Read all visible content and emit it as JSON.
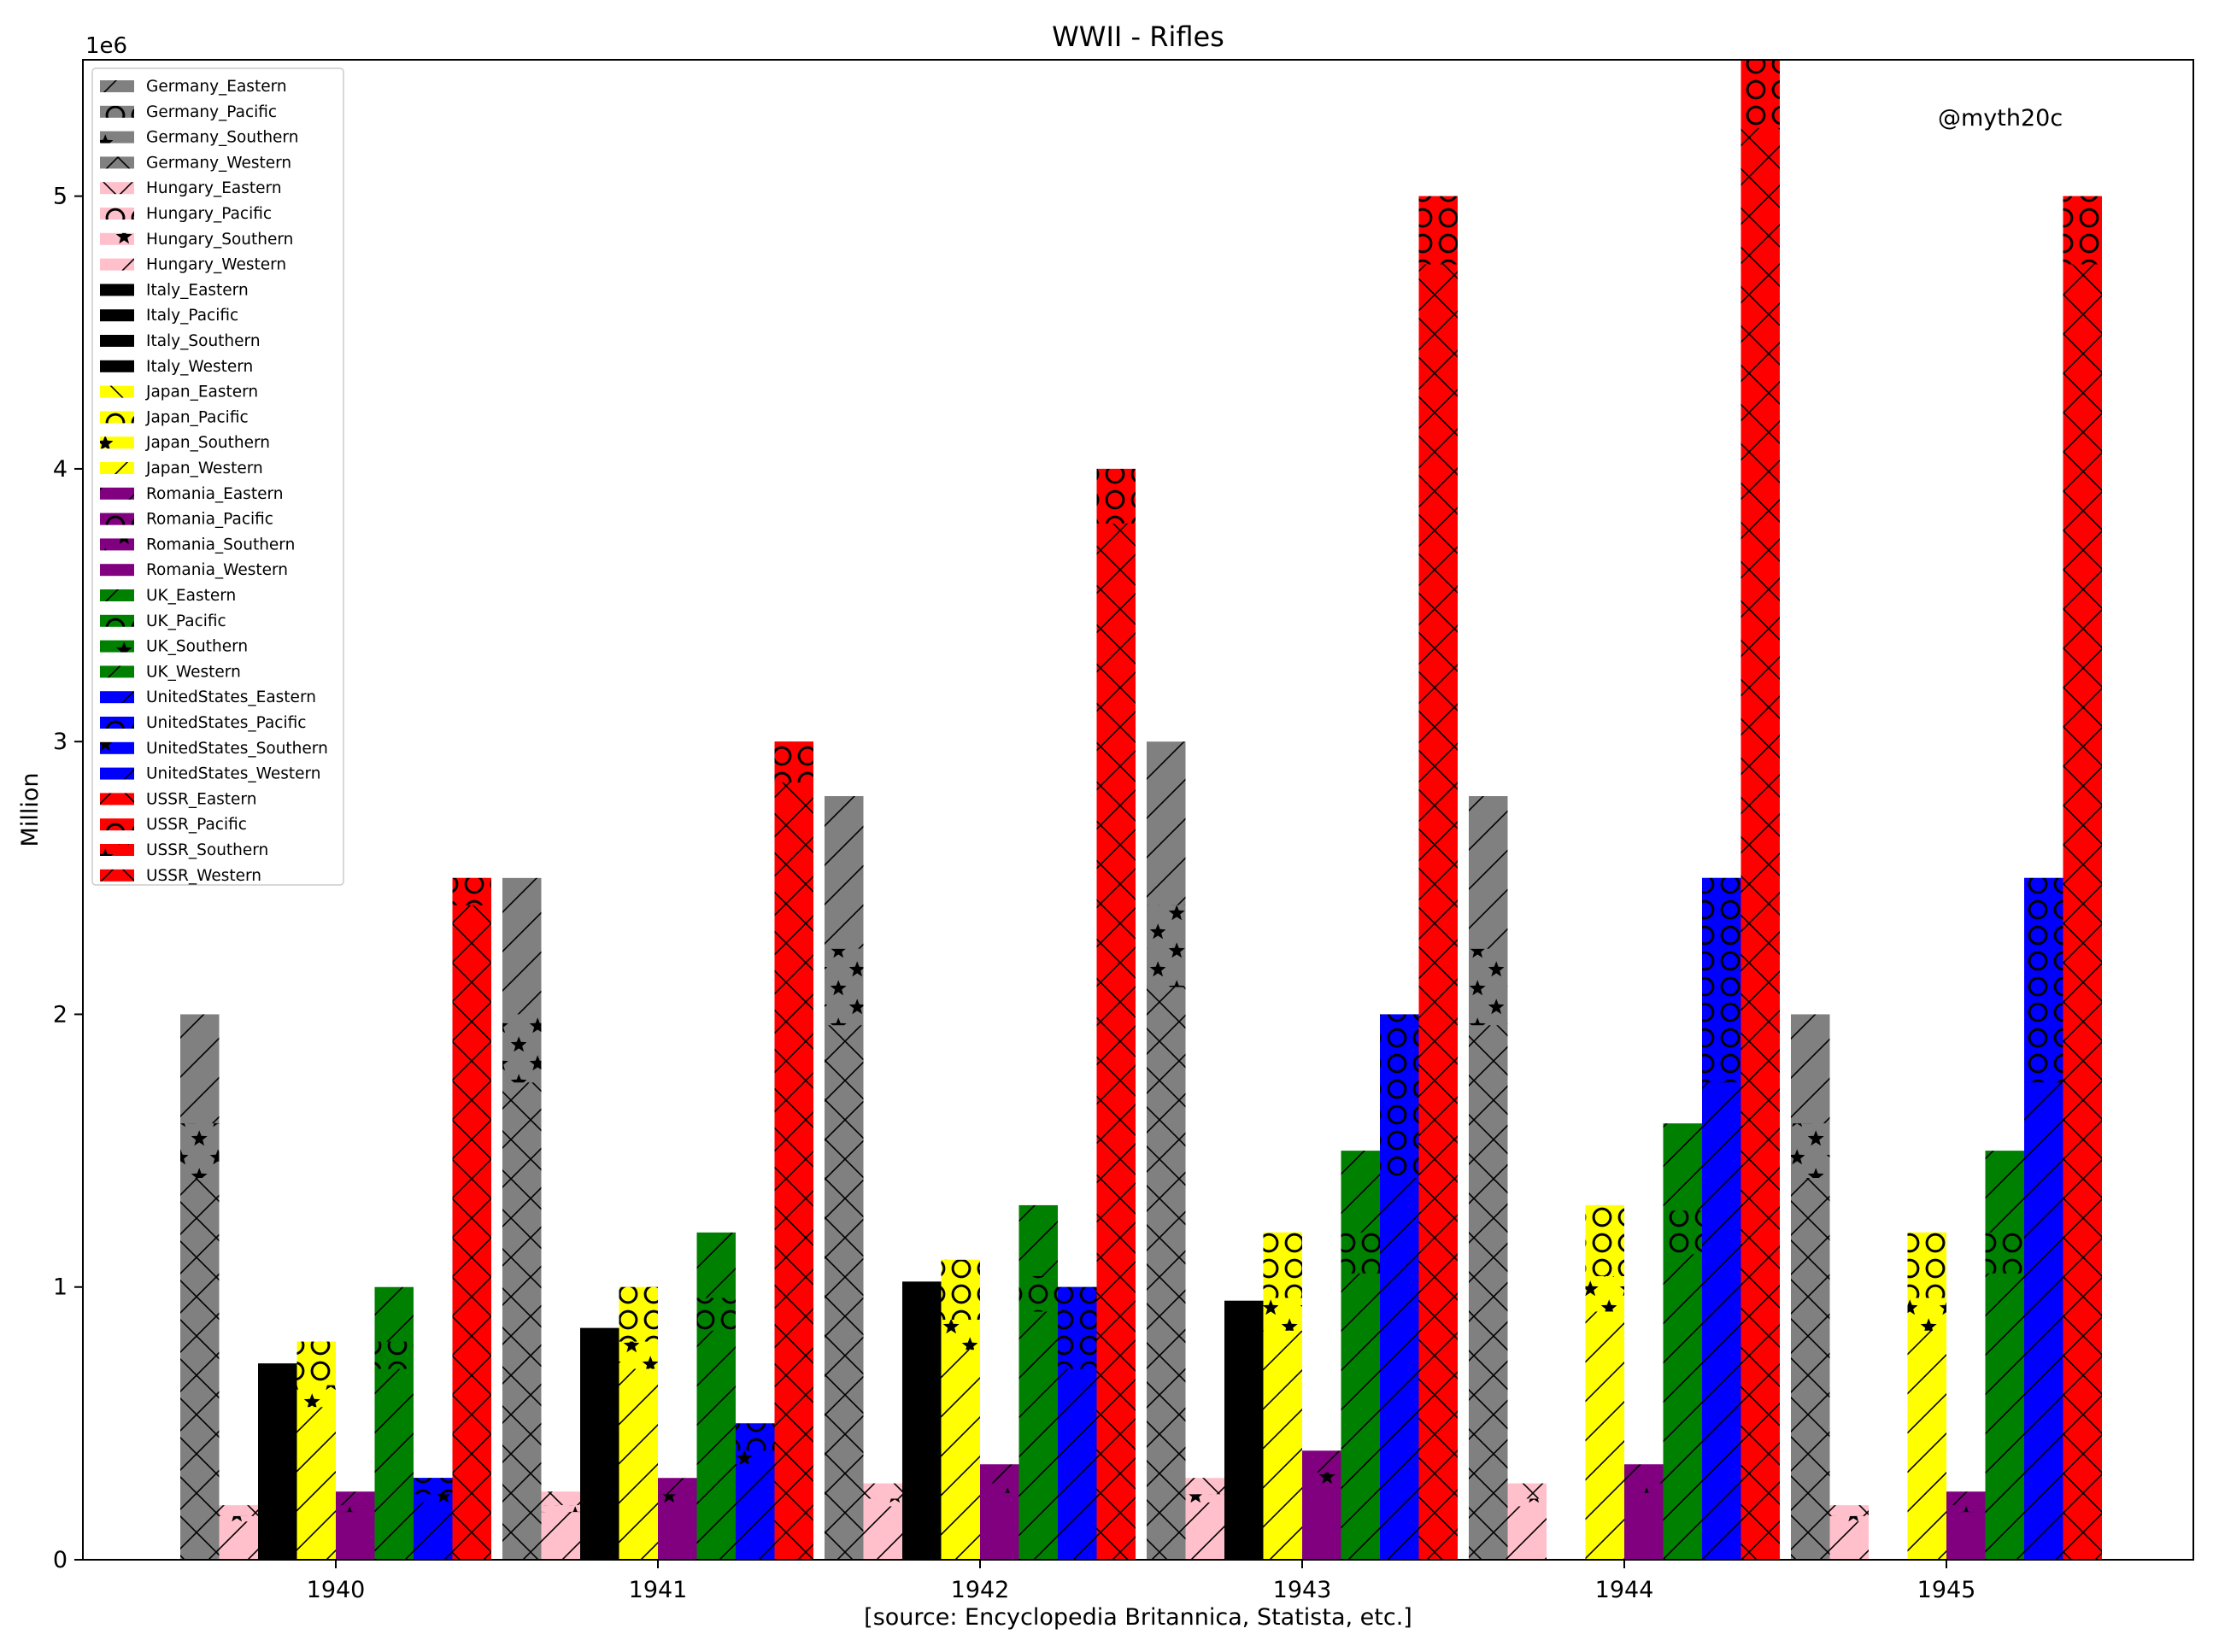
{
  "chart_data": {
    "type": "bar",
    "title": "WWII - Rifles",
    "xlabel": "[source: Encyclopedia Britannica, Statista, etc.]",
    "ylabel": "Million",
    "y_offset_label": "1e6",
    "watermark": "@myth20c",
    "categories": [
      "1940",
      "1941",
      "1942",
      "1943",
      "1944",
      "1945"
    ],
    "ylim": [
      0,
      5500000
    ],
    "yticks": [
      0,
      1000000,
      2000000,
      3000000,
      4000000,
      5000000
    ],
    "ytick_labels": [
      "0",
      "1",
      "2",
      "3",
      "4",
      "5"
    ],
    "grid": false,
    "legend_position": "top-left",
    "countries": [
      {
        "name": "Germany",
        "color": "#808080",
        "values": [
          2000000,
          2500000,
          2800000,
          3000000,
          2800000,
          2000000
        ]
      },
      {
        "name": "Hungary",
        "color": "#ffc0cb",
        "values": [
          200000,
          250000,
          280000,
          300000,
          280000,
          200000
        ]
      },
      {
        "name": "Italy",
        "color": "#000000",
        "values": [
          720000,
          850000,
          1020000,
          950000,
          0,
          0
        ]
      },
      {
        "name": "Japan",
        "color": "#ffff00",
        "values": [
          800000,
          1000000,
          1100000,
          1200000,
          1300000,
          1200000
        ]
      },
      {
        "name": "Romania",
        "color": "#800080",
        "values": [
          250000,
          300000,
          350000,
          400000,
          350000,
          250000
        ]
      },
      {
        "name": "UK",
        "color": "#008000",
        "values": [
          1000000,
          1200000,
          1300000,
          1500000,
          1600000,
          1500000
        ]
      },
      {
        "name": "UnitedStates",
        "color": "#0000ff",
        "values": [
          300000,
          500000,
          1000000,
          2000000,
          2500000,
          2500000
        ]
      },
      {
        "name": "USSR",
        "color": "#ff0000",
        "values": [
          2500000,
          3000000,
          4000000,
          5000000,
          5500000,
          5000000
        ]
      }
    ],
    "series": [
      {
        "name": "Germany_Eastern",
        "color": "#808080",
        "hatch": "slash",
        "values": [
          2000000,
          2500000,
          2800000,
          3000000,
          2800000,
          2000000
        ]
      },
      {
        "name": "Germany_Pacific",
        "color": "#808080",
        "hatch": "circle",
        "values": [
          1600000,
          2000000,
          2240000,
          2400000,
          2240000,
          1600000
        ]
      },
      {
        "name": "Germany_Southern",
        "color": "#808080",
        "hatch": "star",
        "values": [
          1600000,
          2000000,
          2240000,
          2400000,
          2240000,
          1600000
        ]
      },
      {
        "name": "Germany_Western",
        "color": "#808080",
        "hatch": "cross",
        "values": [
          1400000,
          1750000,
          1960000,
          2100000,
          1960000,
          1400000
        ]
      },
      {
        "name": "Hungary_Eastern",
        "color": "#ffc0cb",
        "hatch": "cross",
        "values": [
          200000,
          250000,
          280000,
          300000,
          280000,
          200000
        ]
      },
      {
        "name": "Hungary_Pacific",
        "color": "#ffc0cb",
        "hatch": "circle",
        "values": [
          160000,
          200000,
          224000,
          240000,
          224000,
          160000
        ]
      },
      {
        "name": "Hungary_Southern",
        "color": "#ffc0cb",
        "hatch": "star",
        "values": [
          160000,
          200000,
          224000,
          240000,
          224000,
          160000
        ]
      },
      {
        "name": "Hungary_Western",
        "color": "#ffc0cb",
        "hatch": "slash",
        "values": [
          140000,
          175000,
          196000,
          210000,
          196000,
          140000
        ]
      },
      {
        "name": "Italy_Eastern",
        "color": "#000000",
        "hatch": "none",
        "values": [
          720000,
          850000,
          1020000,
          950000,
          0,
          0
        ]
      },
      {
        "name": "Italy_Pacific",
        "color": "#000000",
        "hatch": "none",
        "values": [
          580000,
          680000,
          820000,
          760000,
          0,
          0
        ]
      },
      {
        "name": "Italy_Southern",
        "color": "#000000",
        "hatch": "none",
        "values": [
          580000,
          680000,
          820000,
          760000,
          0,
          0
        ]
      },
      {
        "name": "Italy_Western",
        "color": "#000000",
        "hatch": "none",
        "values": [
          500000,
          600000,
          710000,
          670000,
          0,
          0
        ]
      },
      {
        "name": "Japan_Eastern",
        "color": "#ffff00",
        "hatch": "backslash",
        "values": [
          800000,
          1000000,
          1100000,
          1200000,
          1300000,
          1200000
        ]
      },
      {
        "name": "Japan_Pacific",
        "color": "#ffff00",
        "hatch": "circle",
        "values": [
          800000,
          1000000,
          1100000,
          1200000,
          1300000,
          1200000
        ]
      },
      {
        "name": "Japan_Southern",
        "color": "#ffff00",
        "hatch": "star",
        "values": [
          640000,
          800000,
          880000,
          960000,
          1040000,
          960000
        ]
      },
      {
        "name": "Japan_Western",
        "color": "#ffff00",
        "hatch": "slash",
        "values": [
          560000,
          700000,
          770000,
          840000,
          910000,
          840000
        ]
      },
      {
        "name": "Romania_Eastern",
        "color": "#800080",
        "hatch": "slash",
        "values": [
          250000,
          300000,
          350000,
          400000,
          350000,
          250000
        ]
      },
      {
        "name": "Romania_Pacific",
        "color": "#800080",
        "hatch": "circle",
        "values": [
          200000,
          240000,
          280000,
          320000,
          280000,
          200000
        ]
      },
      {
        "name": "Romania_Southern",
        "color": "#800080",
        "hatch": "star",
        "values": [
          200000,
          240000,
          280000,
          320000,
          280000,
          200000
        ]
      },
      {
        "name": "Romania_Western",
        "color": "#800080",
        "hatch": "none",
        "values": [
          175000,
          210000,
          245000,
          280000,
          245000,
          175000
        ]
      },
      {
        "name": "UK_Eastern",
        "color": "#008000",
        "hatch": "slash",
        "values": [
          1000000,
          1200000,
          1300000,
          1500000,
          1600000,
          1500000
        ]
      },
      {
        "name": "UK_Pacific",
        "color": "#008000",
        "hatch": "circle",
        "values": [
          800000,
          960000,
          1040000,
          1200000,
          1280000,
          1200000
        ]
      },
      {
        "name": "UK_Southern",
        "color": "#008000",
        "hatch": "star",
        "values": [
          460000,
          580000,
          650000,
          740000,
          790000,
          740000
        ]
      },
      {
        "name": "UK_Western",
        "color": "#008000",
        "hatch": "slash",
        "values": [
          700000,
          840000,
          910000,
          1050000,
          1120000,
          1050000
        ]
      },
      {
        "name": "UnitedStates_Eastern",
        "color": "#0000ff",
        "hatch": "slash",
        "values": [
          300000,
          500000,
          1000000,
          2000000,
          2500000,
          2500000
        ]
      },
      {
        "name": "UnitedStates_Pacific",
        "color": "#0000ff",
        "hatch": "circle",
        "values": [
          300000,
          500000,
          1000000,
          2000000,
          2500000,
          2500000
        ]
      },
      {
        "name": "UnitedStates_Southern",
        "color": "#0000ff",
        "hatch": "star",
        "values": [
          240000,
          400000,
          680000,
          1400000,
          1750000,
          1750000
        ]
      },
      {
        "name": "UnitedStates_Western",
        "color": "#0000ff",
        "hatch": "slash",
        "values": [
          210000,
          350000,
          700000,
          1400000,
          1750000,
          1750000
        ]
      },
      {
        "name": "USSR_Eastern",
        "color": "#ff0000",
        "hatch": "cross",
        "values": [
          2500000,
          3000000,
          4000000,
          5000000,
          5500000,
          5000000
        ]
      },
      {
        "name": "USSR_Pacific",
        "color": "#ff0000",
        "hatch": "circle",
        "values": [
          2500000,
          3000000,
          4000000,
          5000000,
          5500000,
          5000000
        ]
      },
      {
        "name": "USSR_Southern",
        "color": "#ff0000",
        "hatch": "star",
        "values": [
          2000000,
          2400000,
          3200000,
          4000000,
          4400000,
          4000000
        ]
      },
      {
        "name": "USSR_Western",
        "color": "#ff0000",
        "hatch": "cross",
        "values": [
          2400000,
          2850000,
          3800000,
          4750000,
          5250000,
          4750000
        ]
      }
    ]
  }
}
